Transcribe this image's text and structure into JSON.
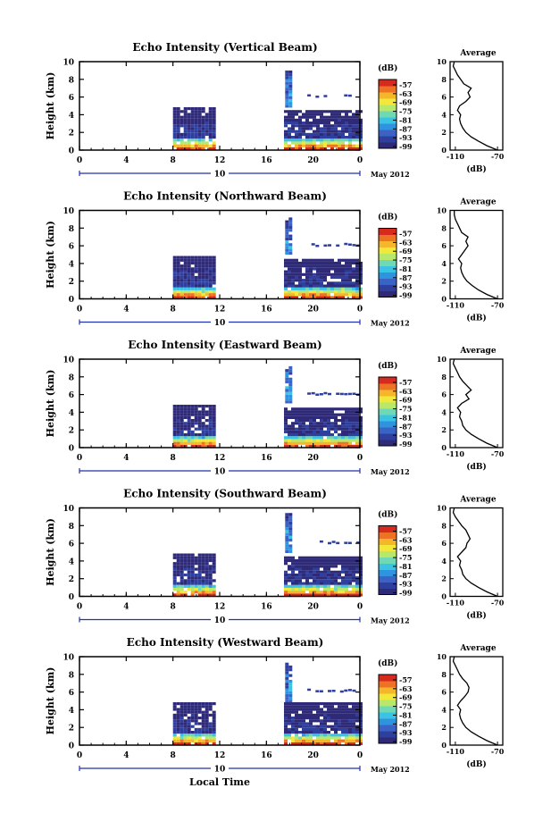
{
  "figure": {
    "xlabel": "Local Time",
    "date_label": "May 2012",
    "day_label": "10",
    "colorbar": {
      "unit": "(dB)",
      "ticks": [
        "-57",
        "-63",
        "-69",
        "-75",
        "-81",
        "-87",
        "-93",
        "-99"
      ],
      "colors": [
        "#2e2a78",
        "#2f3f9e",
        "#3b63c6",
        "#2f93df",
        "#3bc3e4",
        "#6fd9b6",
        "#b7e86a",
        "#f2e83a",
        "#f6b62a",
        "#ee7224",
        "#d62a1e"
      ]
    }
  },
  "chart_data": [
    {
      "type": "heatmap",
      "title": "Echo Intensity (Vertical Beam)",
      "xlabel": "",
      "ylabel": "Height (km)",
      "xlim": [
        0,
        24
      ],
      "ylim": [
        0,
        10
      ],
      "xticks": [
        "0",
        "4",
        "8",
        "12",
        "16",
        "20",
        "0"
      ],
      "yticks": [
        "0",
        "2",
        "4",
        "6",
        "8",
        "10"
      ],
      "echo_regions": [
        {
          "t_start": 8,
          "t_end": 11.6,
          "h_top": 4.7,
          "note": "morning"
        },
        {
          "t_start": 17.6,
          "t_end": 18.2,
          "h_bottom": 4.8,
          "h_top": 9.0,
          "note": "layer"
        },
        {
          "t_start": 17.5,
          "t_end": 24,
          "h_top": 4.4,
          "note": "evening"
        }
      ],
      "average": {
        "title": "Average",
        "xlabel": "(dB)",
        "xlim": [
          -115,
          -65
        ],
        "xticks": [
          "-110",
          "-70"
        ],
        "yticks": [
          "0",
          "2",
          "4",
          "6",
          "8",
          "10"
        ],
        "profile_h": [
          0,
          0.5,
          1,
          1.5,
          2,
          2.5,
          3,
          3.5,
          4,
          4.5,
          5,
          5.5,
          6,
          6.5,
          7,
          7.5,
          8,
          8.5,
          9,
          9.5,
          10
        ],
        "profile_db": [
          -70,
          -80,
          -88,
          -95,
          -100,
          -103,
          -105,
          -106,
          -105,
          -108,
          -106,
          -100,
          -96,
          -98,
          -95,
          -102,
          -105,
          -108,
          -110,
          -112,
          -111
        ]
      }
    },
    {
      "type": "heatmap",
      "title": "Echo Intensity (Northward Beam)",
      "xlabel": "",
      "ylabel": "Height (km)",
      "xlim": [
        0,
        24
      ],
      "ylim": [
        0,
        10
      ],
      "xticks": [
        "0",
        "4",
        "8",
        "12",
        "16",
        "20",
        "0"
      ],
      "yticks": [
        "0",
        "2",
        "4",
        "6",
        "8",
        "10"
      ],
      "echo_regions": [
        {
          "t_start": 8,
          "t_end": 11.6,
          "h_top": 4.8
        },
        {
          "t_start": 17.6,
          "t_end": 18.2,
          "h_bottom": 5.0,
          "h_top": 9.2
        },
        {
          "t_start": 17.5,
          "t_end": 24,
          "h_top": 4.5
        }
      ],
      "average": {
        "title": "Average",
        "xlabel": "(dB)",
        "xlim": [
          -115,
          -65
        ],
        "xticks": [
          "-110",
          "-70"
        ],
        "yticks": [
          "0",
          "2",
          "4",
          "6",
          "8",
          "10"
        ],
        "profile_h": [
          0,
          0.5,
          1,
          1.5,
          2,
          2.5,
          3,
          3.5,
          4,
          4.5,
          5,
          5.5,
          6,
          6.5,
          7,
          7.5,
          8,
          8.5,
          9,
          9.5,
          10
        ],
        "profile_db": [
          -70,
          -80,
          -88,
          -94,
          -99,
          -102,
          -104,
          -105,
          -104,
          -107,
          -104,
          -101,
          -98,
          -100,
          -98,
          -104,
          -106,
          -108,
          -110,
          -111,
          -111
        ]
      }
    },
    {
      "type": "heatmap",
      "title": "Echo Intensity (Eastward Beam)",
      "xlabel": "",
      "ylabel": "Height (km)",
      "xlim": [
        0,
        24
      ],
      "ylim": [
        0,
        10
      ],
      "xticks": [
        "0",
        "4",
        "8",
        "12",
        "16",
        "20",
        "0"
      ],
      "yticks": [
        "0",
        "2",
        "4",
        "6",
        "8",
        "10"
      ],
      "echo_regions": [
        {
          "t_start": 8,
          "t_end": 11.6,
          "h_top": 4.6
        },
        {
          "t_start": 17.6,
          "t_end": 18.2,
          "h_bottom": 5.0,
          "h_top": 9.2
        },
        {
          "t_start": 17.5,
          "t_end": 24,
          "h_top": 4.5
        }
      ],
      "average": {
        "title": "Average",
        "xlabel": "(dB)",
        "xlim": [
          -115,
          -65
        ],
        "xticks": [
          "-110",
          "-70"
        ],
        "yticks": [
          "0",
          "2",
          "4",
          "6",
          "8",
          "10"
        ],
        "profile_h": [
          0,
          0.5,
          1,
          1.5,
          2,
          2.5,
          3,
          3.5,
          4,
          4.5,
          5,
          5.5,
          6,
          6.5,
          7,
          7.5,
          8,
          8.5,
          9,
          9.5,
          10
        ],
        "profile_db": [
          -70,
          -80,
          -88,
          -95,
          -100,
          -103,
          -104,
          -106,
          -105,
          -108,
          -104,
          -97,
          -100,
          -95,
          -99,
          -103,
          -106,
          -108,
          -110,
          -112,
          -111
        ]
      }
    },
    {
      "type": "heatmap",
      "title": "Echo Intensity (Southward Beam)",
      "xlabel": "",
      "ylabel": "Height (km)",
      "xlim": [
        0,
        24
      ],
      "ylim": [
        0,
        10
      ],
      "xticks": [
        "0",
        "4",
        "8",
        "12",
        "16",
        "20",
        "0"
      ],
      "yticks": [
        "0",
        "2",
        "4",
        "6",
        "8",
        "10"
      ],
      "echo_regions": [
        {
          "t_start": 8,
          "t_end": 11.6,
          "h_top": 4.6
        },
        {
          "t_start": 17.6,
          "t_end": 18.2,
          "h_bottom": 4.9,
          "h_top": 9.2
        },
        {
          "t_start": 17.5,
          "t_end": 24,
          "h_top": 4.5
        }
      ],
      "average": {
        "title": "Average",
        "xlabel": "(dB)",
        "xlim": [
          -115,
          -65
        ],
        "xticks": [
          "-110",
          "-70"
        ],
        "yticks": [
          "0",
          "2",
          "4",
          "6",
          "8",
          "10"
        ],
        "profile_h": [
          0,
          0.5,
          1,
          1.5,
          2,
          2.5,
          3,
          3.5,
          4,
          4.5,
          5,
          5.5,
          6,
          6.5,
          7,
          7.5,
          8,
          8.5,
          9,
          9.5,
          10
        ],
        "profile_db": [
          -70,
          -80,
          -88,
          -95,
          -100,
          -103,
          -104,
          -106,
          -105,
          -108,
          -104,
          -100,
          -99,
          -96,
          -98,
          -100,
          -104,
          -107,
          -110,
          -112,
          -111
        ]
      }
    },
    {
      "type": "heatmap",
      "title": "Echo Intensity (Westward Beam)",
      "xlabel": "",
      "ylabel": "Height (km)",
      "xlim": [
        0,
        24
      ],
      "ylim": [
        0,
        10
      ],
      "xticks": [
        "0",
        "4",
        "8",
        "12",
        "16",
        "20",
        "0"
      ],
      "yticks": [
        "0",
        "2",
        "4",
        "6",
        "8",
        "10"
      ],
      "echo_regions": [
        {
          "t_start": 8,
          "t_end": 11.6,
          "h_top": 4.6
        },
        {
          "t_start": 17.6,
          "t_end": 18.2,
          "h_bottom": 4.8,
          "h_top": 9.2
        },
        {
          "t_start": 17.5,
          "t_end": 24,
          "h_top": 4.6
        }
      ],
      "average": {
        "title": "Average",
        "xlabel": "(dB)",
        "xlim": [
          -115,
          -65
        ],
        "xticks": [
          "-110",
          "-70"
        ],
        "yticks": [
          "0",
          "2",
          "4",
          "6",
          "8",
          "10"
        ],
        "profile_h": [
          0,
          0.5,
          1,
          1.5,
          2,
          2.5,
          3,
          3.5,
          4,
          4.5,
          5,
          5.5,
          6,
          6.5,
          7,
          7.5,
          8,
          8.5,
          9,
          9.5,
          10
        ],
        "profile_db": [
          -70,
          -80,
          -88,
          -95,
          -100,
          -103,
          -105,
          -106,
          -105,
          -108,
          -105,
          -101,
          -98,
          -97,
          -99,
          -103,
          -106,
          -108,
          -110,
          -112,
          -111
        ]
      }
    }
  ]
}
